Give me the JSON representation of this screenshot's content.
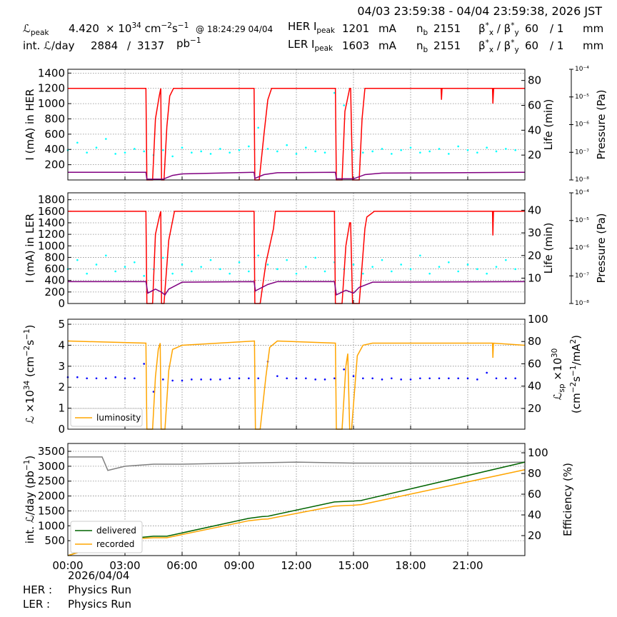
{
  "header": {
    "period": "04/03 23:59:38 - 04/04 23:59:38, 2026 JST",
    "lumi_peak_label": [
      "ℒ",
      {
        "sub": "peak"
      }
    ],
    "lumi_peak": "4.420",
    "lumi_unit": [
      "× 10",
      {
        "sup": "34"
      },
      " cm",
      {
        "sup": "−2"
      },
      "s",
      {
        "sup": "−1"
      }
    ],
    "lumi_peak_time": "@ 18:24:29 04/04",
    "int_lumi_label": "int. ℒ/day",
    "int_lumi_recorded": "2884",
    "int_lumi_slash": "/",
    "int_lumi_delivered": "3137",
    "int_lumi_unit": [
      "pb",
      {
        "sup": "−1"
      }
    ],
    "her": {
      "ipeak_label": [
        "HER I",
        {
          "sub": "peak"
        }
      ],
      "ipeak": "1201",
      "unit": "mA",
      "nb_label": [
        "n",
        {
          "sub": "b"
        }
      ],
      "nb": "2151",
      "beta_label": [
        "β",
        {
          "sup": "*"
        },
        {
          "sub": "x"
        },
        " / β",
        {
          "sup": "*"
        },
        {
          "sub": "y"
        }
      ],
      "beta_x": "60",
      "beta_y": "/ 1",
      "beta_unit": "mm"
    },
    "ler": {
      "ipeak_label": [
        "LER I",
        {
          "sub": "peak"
        }
      ],
      "ipeak": "1603",
      "unit": "mA",
      "nb_label": [
        "n",
        {
          "sub": "b"
        }
      ],
      "nb": "2151",
      "beta_label": [
        "β",
        {
          "sup": "*"
        },
        {
          "sub": "x"
        },
        " / β",
        {
          "sup": "*"
        },
        {
          "sub": "y"
        }
      ],
      "beta_x": "60",
      "beta_y": "/ 1",
      "beta_unit": "mm"
    }
  },
  "footer": {
    "date": "2026/04/04",
    "her_label": "HER :",
    "her_mode": "Physics Run",
    "ler_label": "LER :",
    "ler_mode": "Physics Run"
  },
  "chart_data": [
    {
      "type": "line",
      "grid": true,
      "ylabel": "I (mA) in HER",
      "y2label": "Life (min)",
      "y3label": "Pressure (Pa)",
      "xlim": [
        0,
        24
      ],
      "ylim": [
        0,
        1450
      ],
      "yticks": [
        200,
        400,
        600,
        800,
        1000,
        1200,
        1400
      ],
      "y2lim": [
        0,
        89
      ],
      "y2ticks": [
        20,
        40,
        60,
        80
      ],
      "y3lim": [
        1e-08,
        0.0001
      ],
      "y3log": true,
      "y3ticks": [
        {
          "value": 1e-08,
          "label": "10⁻⁸"
        },
        {
          "value": 1e-07,
          "label": "10⁻⁷"
        },
        {
          "value": 1e-06,
          "label": "10⁻⁶"
        },
        {
          "value": 1e-05,
          "label": "10⁻⁵"
        },
        {
          "value": 0.0001,
          "label": "10⁻⁴"
        }
      ],
      "series": [
        {
          "style": "dots",
          "axis": "y2",
          "color": "#00ffff",
          "x": [
            0,
            0.5,
            1,
            1.5,
            2,
            2.5,
            3,
            3.5,
            4,
            4.5,
            5,
            5.5,
            6,
            6.5,
            7,
            7.5,
            8,
            8.5,
            9,
            9.5,
            10,
            10.5,
            11,
            11.5,
            12,
            12.5,
            13,
            13.5,
            14,
            14.5,
            15,
            15.5,
            16,
            16.5,
            17,
            17.5,
            18,
            18.5,
            19,
            19.5,
            20,
            20.5,
            21,
            21.5,
            22,
            22.5,
            23,
            23.5
          ],
          "values": [
            24,
            30,
            22,
            26,
            33,
            21,
            22,
            25,
            23,
            20,
            24,
            19,
            26,
            22,
            23,
            21,
            25,
            22,
            24,
            27,
            42,
            25,
            23,
            28,
            21,
            26,
            23,
            22,
            70,
            60,
            24,
            22,
            23,
            25,
            21,
            24,
            26,
            22,
            23,
            25,
            21,
            27,
            24,
            22,
            26,
            23,
            25,
            24
          ]
        },
        {
          "style": "line",
          "color": "#ff0000",
          "x": [
            0,
            4.1,
            4.15,
            4.45,
            4.6,
            4.8,
            4.88,
            4.92,
            5.05,
            5.2,
            5.35,
            5.55,
            9.78,
            9.82,
            10.05,
            10.3,
            10.5,
            10.7,
            14.05,
            14.1,
            14.4,
            14.55,
            14.8,
            14.85,
            14.95,
            15.3,
            15.45,
            15.6,
            19.6,
            19.62,
            19.65,
            22.3,
            22.32,
            22.36,
            24
          ],
          "values": [
            1200,
            1200,
            0,
            0,
            800,
            1100,
            1200,
            0,
            0,
            700,
            1100,
            1200,
            1200,
            0,
            0,
            600,
            1050,
            1200,
            1200,
            0,
            0,
            900,
            1200,
            1200,
            0,
            0,
            800,
            1200,
            1200,
            1050,
            1200,
            1200,
            1000,
            1200,
            1200
          ]
        },
        {
          "style": "line",
          "color": "#800080",
          "x": [
            0,
            4.1,
            4.15,
            4.9,
            5.0,
            5.5,
            6,
            9.78,
            9.82,
            10.3,
            11,
            14.05,
            14.1,
            14.9,
            15.0,
            15.6,
            16.5,
            24
          ],
          "values": [
            100,
            100,
            10,
            10,
            10,
            60,
            80,
            100,
            20,
            70,
            95,
            100,
            15,
            15,
            15,
            70,
            90,
            100
          ]
        }
      ]
    },
    {
      "type": "line",
      "grid": true,
      "ylabel": "I (mA) in LER",
      "y2label": "Life (min)",
      "y3label": "Pressure (Pa)",
      "xlim": [
        0,
        24
      ],
      "ylim": [
        0,
        1920
      ],
      "yticks": [
        0,
        200,
        400,
        600,
        800,
        1000,
        1200,
        1400,
        1600,
        1800
      ],
      "y2lim": [
        -1.2,
        47.7
      ],
      "y2ticks": [
        10,
        20,
        30,
        40
      ],
      "y3lim": [
        1e-08,
        0.0001
      ],
      "y3log": true,
      "y3ticks": [
        {
          "value": 1e-08,
          "label": "10⁻⁸"
        },
        {
          "value": 1e-07,
          "label": "10⁻⁷"
        },
        {
          "value": 1e-06,
          "label": "10⁻⁶"
        },
        {
          "value": 1e-05,
          "label": "10⁻⁵"
        },
        {
          "value": 0.0001,
          "label": "10⁻⁴"
        }
      ],
      "series": [
        {
          "style": "dots",
          "axis": "y2",
          "color": "#00ffff",
          "x": [
            0,
            0.5,
            1,
            1.5,
            2,
            2.5,
            3,
            3.5,
            4,
            4.5,
            5,
            5.5,
            6,
            6.5,
            7,
            7.5,
            8,
            8.5,
            9,
            9.5,
            10,
            10.5,
            11,
            11.5,
            12,
            12.5,
            13,
            13.5,
            14,
            14.5,
            15,
            15.5,
            16,
            16.5,
            17,
            17.5,
            18,
            18.5,
            19,
            19.5,
            20,
            20.5,
            21,
            21.5,
            22,
            22.5,
            23,
            23.5
          ],
          "values": [
            14,
            18,
            12,
            16,
            20,
            13,
            15,
            17,
            11,
            14,
            19,
            12,
            16,
            13,
            15,
            18,
            14,
            12,
            17,
            13,
            20,
            16,
            14,
            18,
            12,
            15,
            19,
            13,
            17,
            14,
            16,
            12,
            15,
            18,
            13,
            16,
            14,
            20,
            12,
            15,
            17,
            13,
            16,
            14,
            12,
            15,
            18,
            14
          ]
        },
        {
          "style": "line",
          "color": "#ff0000",
          "x": [
            0,
            4.1,
            4.15,
            4.45,
            4.6,
            4.8,
            4.88,
            4.92,
            5.05,
            5.3,
            5.6,
            9.78,
            9.82,
            10.1,
            10.4,
            10.8,
            10.9,
            14.0,
            14.05,
            14.4,
            14.6,
            14.8,
            14.85,
            14.95,
            15.3,
            15.6,
            15.7,
            15.9,
            16.1,
            22.3,
            22.32,
            22.35,
            24
          ],
          "values": [
            1600,
            1600,
            0,
            0,
            1200,
            1500,
            1600,
            0,
            0,
            1100,
            1600,
            1600,
            0,
            0,
            700,
            1300,
            1600,
            1600,
            0,
            0,
            1000,
            1400,
            1400,
            0,
            0,
            1300,
            1500,
            1550,
            1600,
            1600,
            1180,
            1600,
            1600
          ]
        },
        {
          "style": "line",
          "color": "#800080",
          "x": [
            0,
            4.1,
            4.2,
            4.6,
            4.9,
            5.1,
            5.3,
            6,
            9.78,
            9.85,
            10.5,
            11,
            14.0,
            14.1,
            14.6,
            15.0,
            15.3,
            16,
            24
          ],
          "values": [
            380,
            380,
            180,
            250,
            200,
            150,
            250,
            370,
            380,
            220,
            330,
            380,
            380,
            150,
            230,
            180,
            280,
            370,
            380
          ]
        }
      ]
    },
    {
      "type": "line",
      "grid": true,
      "legend": "lower left",
      "ylabel": [
        "ℒ ×10",
        {
          "sup": "34"
        },
        " (cm",
        {
          "sup": "−2"
        },
        "s",
        {
          "sup": "−1"
        },
        ")"
      ],
      "y2label": [
        "ℒ",
        {
          "sub": "sp"
        },
        " ×10",
        {
          "sup": "30"
        }
      ],
      "y2sublabel": [
        "(cm",
        {
          "sup": "−2"
        },
        "s",
        {
          "sup": "−1"
        },
        "/mA",
        {
          "sup": "2"
        },
        ")"
      ],
      "xlim": [
        0,
        24
      ],
      "ylim": [
        0,
        5.24
      ],
      "yticks": [
        0,
        1,
        2,
        3,
        4,
        5
      ],
      "y2lim": [
        1.4,
        100
      ],
      "y2ticks": [
        20,
        40,
        60,
        80,
        100
      ],
      "series": [
        {
          "style": "dots",
          "axis": "y2",
          "color": "#0000ff",
          "x": [
            0,
            0.5,
            1,
            1.5,
            2,
            2.5,
            3,
            3.5,
            4,
            4.5,
            5,
            5.5,
            6,
            6.5,
            7,
            7.5,
            8,
            8.5,
            9,
            9.5,
            10,
            10.5,
            11,
            11.5,
            12,
            12.5,
            13,
            13.5,
            14,
            14.5,
            15,
            15.5,
            16,
            16.5,
            17,
            17.5,
            18,
            18.5,
            19,
            19.5,
            20,
            20.5,
            21,
            21.5,
            22,
            22.5,
            23,
            23.5
          ],
          "values": [
            48,
            48,
            47,
            47,
            47,
            48,
            47,
            47,
            60,
            35,
            46,
            45,
            45,
            46,
            46,
            46,
            46,
            47,
            47,
            47,
            47,
            62,
            49,
            47,
            47,
            47,
            46,
            46,
            47,
            55,
            49,
            47,
            47,
            46,
            47,
            46,
            46,
            47,
            47,
            47,
            47,
            47,
            47,
            46,
            52,
            47,
            47,
            47
          ]
        },
        {
          "style": "line",
          "name": "luminosity",
          "color": "#ffa500",
          "x": [
            0,
            4.1,
            4.15,
            4.45,
            4.6,
            4.75,
            4.85,
            4.9,
            5.1,
            5.3,
            5.5,
            6,
            9.8,
            9.85,
            10.1,
            10.4,
            10.6,
            11,
            14.05,
            14.1,
            14.4,
            14.6,
            14.7,
            14.8,
            14.9,
            15.2,
            15.5,
            16,
            22.3,
            22.32,
            22.35,
            24
          ],
          "values": [
            4.2,
            4.1,
            0,
            0,
            2.5,
            3.8,
            4.1,
            0,
            0,
            2.8,
            3.8,
            4.0,
            4.2,
            0,
            0,
            2.5,
            3.9,
            4.2,
            4.1,
            0,
            0,
            3.0,
            3.6,
            0,
            0,
            3.5,
            4.0,
            4.1,
            4.1,
            3.4,
            4.1,
            4.0
          ]
        }
      ]
    },
    {
      "type": "line",
      "grid": true,
      "legend": "lower left",
      "ylabel": [
        "int. ℒ/day (pb",
        {
          "sup": "−1"
        },
        ")"
      ],
      "y2label": "Efficiency (%)",
      "xlim": [
        0,
        24
      ],
      "xticks": [
        {
          "value": 0,
          "label": "00:00"
        },
        {
          "value": 3,
          "label": "03:00"
        },
        {
          "value": 6,
          "label": "06:00"
        },
        {
          "value": 9,
          "label": "09:00"
        },
        {
          "value": 12,
          "label": "12:00"
        },
        {
          "value": 15,
          "label": "15:00"
        },
        {
          "value": 18,
          "label": "18:00"
        },
        {
          "value": 21,
          "label": "21:00"
        }
      ],
      "ylim": [
        0,
        3764
      ],
      "yticks": [
        500,
        1000,
        1500,
        2000,
        2500,
        3000,
        3500
      ],
      "y2lim": [
        0.7,
        109
      ],
      "y2ticks": [
        20,
        40,
        60,
        80,
        100
      ],
      "series": [
        {
          "style": "line",
          "axis": "y2",
          "color": "#808080",
          "x": [
            0,
            1.8,
            2.1,
            3,
            4.5,
            6,
            9,
            12,
            15,
            18,
            21,
            24
          ],
          "values": [
            96,
            96,
            83,
            87,
            89,
            89,
            90,
            91,
            90,
            90,
            90,
            91
          ]
        },
        {
          "style": "line",
          "name": "delivered",
          "color": "#006400",
          "x": [
            0,
            1,
            2,
            3,
            4,
            4.5,
            5.2,
            9.5,
            10.2,
            10.5,
            14,
            14.6,
            15,
            15.4,
            24
          ],
          "values": [
            0,
            200,
            400,
            560,
            620,
            650,
            650,
            1250,
            1310,
            1320,
            1800,
            1820,
            1830,
            1850,
            3137
          ]
        },
        {
          "style": "line",
          "name": "recorded",
          "color": "#ffa500",
          "x": [
            0,
            1,
            2,
            3,
            4,
            4.5,
            5.2,
            9.5,
            10.2,
            10.5,
            14,
            14.6,
            15,
            15.4,
            24
          ],
          "values": [
            0,
            190,
            380,
            530,
            580,
            600,
            600,
            1170,
            1220,
            1230,
            1660,
            1680,
            1690,
            1710,
            2884
          ]
        }
      ]
    }
  ]
}
